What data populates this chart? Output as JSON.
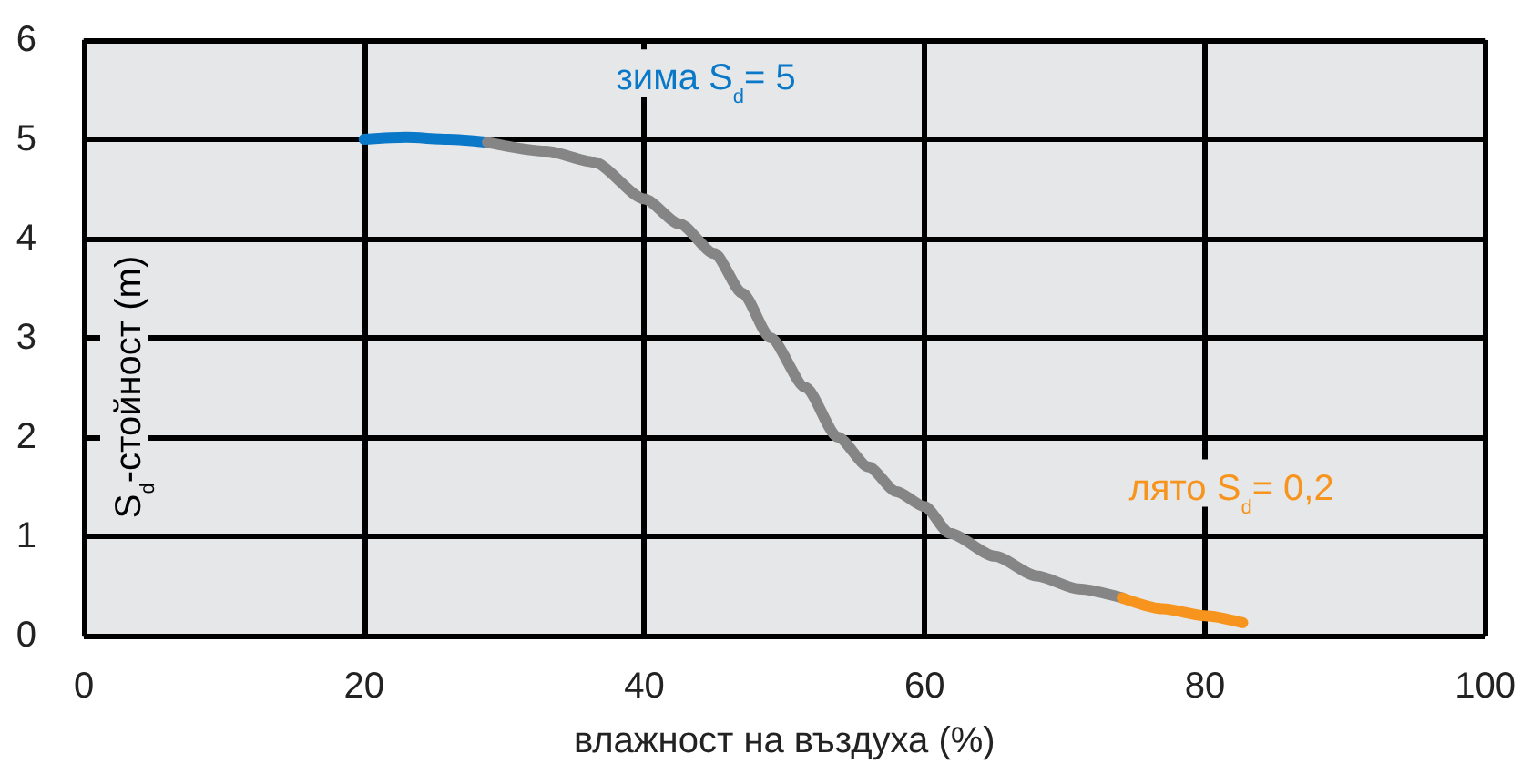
{
  "chart_data": {
    "type": "line",
    "xlabel": "влажност на въздуха (%)",
    "ylabel": "S$_{d}$-стойност (m)",
    "xlim": [
      0,
      100
    ],
    "xticks": [
      0,
      20,
      40,
      60,
      80,
      100
    ],
    "ylim": [
      0,
      6
    ],
    "yticks": [
      0,
      1,
      2,
      3,
      4,
      5,
      6
    ],
    "grid": true,
    "marker": "none",
    "line_style": "solid",
    "series": [
      {
        "name": "зима S$_{d}$= 5",
        "color": "#0a78c8",
        "x": [
          20,
          23,
          26,
          28.8
        ],
        "values": [
          5.0,
          5.02,
          5.0,
          4.97
        ]
      },
      {
        "color": "#858585",
        "x": [
          28.8,
          33,
          36.4,
          40,
          42.5,
          45,
          47,
          49,
          51.5,
          53.8,
          56,
          58,
          60,
          61.8,
          65,
          68,
          71,
          74.1
        ],
        "values": [
          4.97,
          4.88,
          4.77,
          4.4,
          4.15,
          3.85,
          3.45,
          3.0,
          2.5,
          2.0,
          1.7,
          1.45,
          1.3,
          1.03,
          0.8,
          0.6,
          0.47,
          0.38
        ]
      },
      {
        "name": "лято S$_{d}$= 0,2",
        "color": "#f7941d",
        "x": [
          74.1,
          77,
          80,
          82.7
        ],
        "values": [
          0.38,
          0.27,
          0.2,
          0.13
        ]
      }
    ]
  }
}
